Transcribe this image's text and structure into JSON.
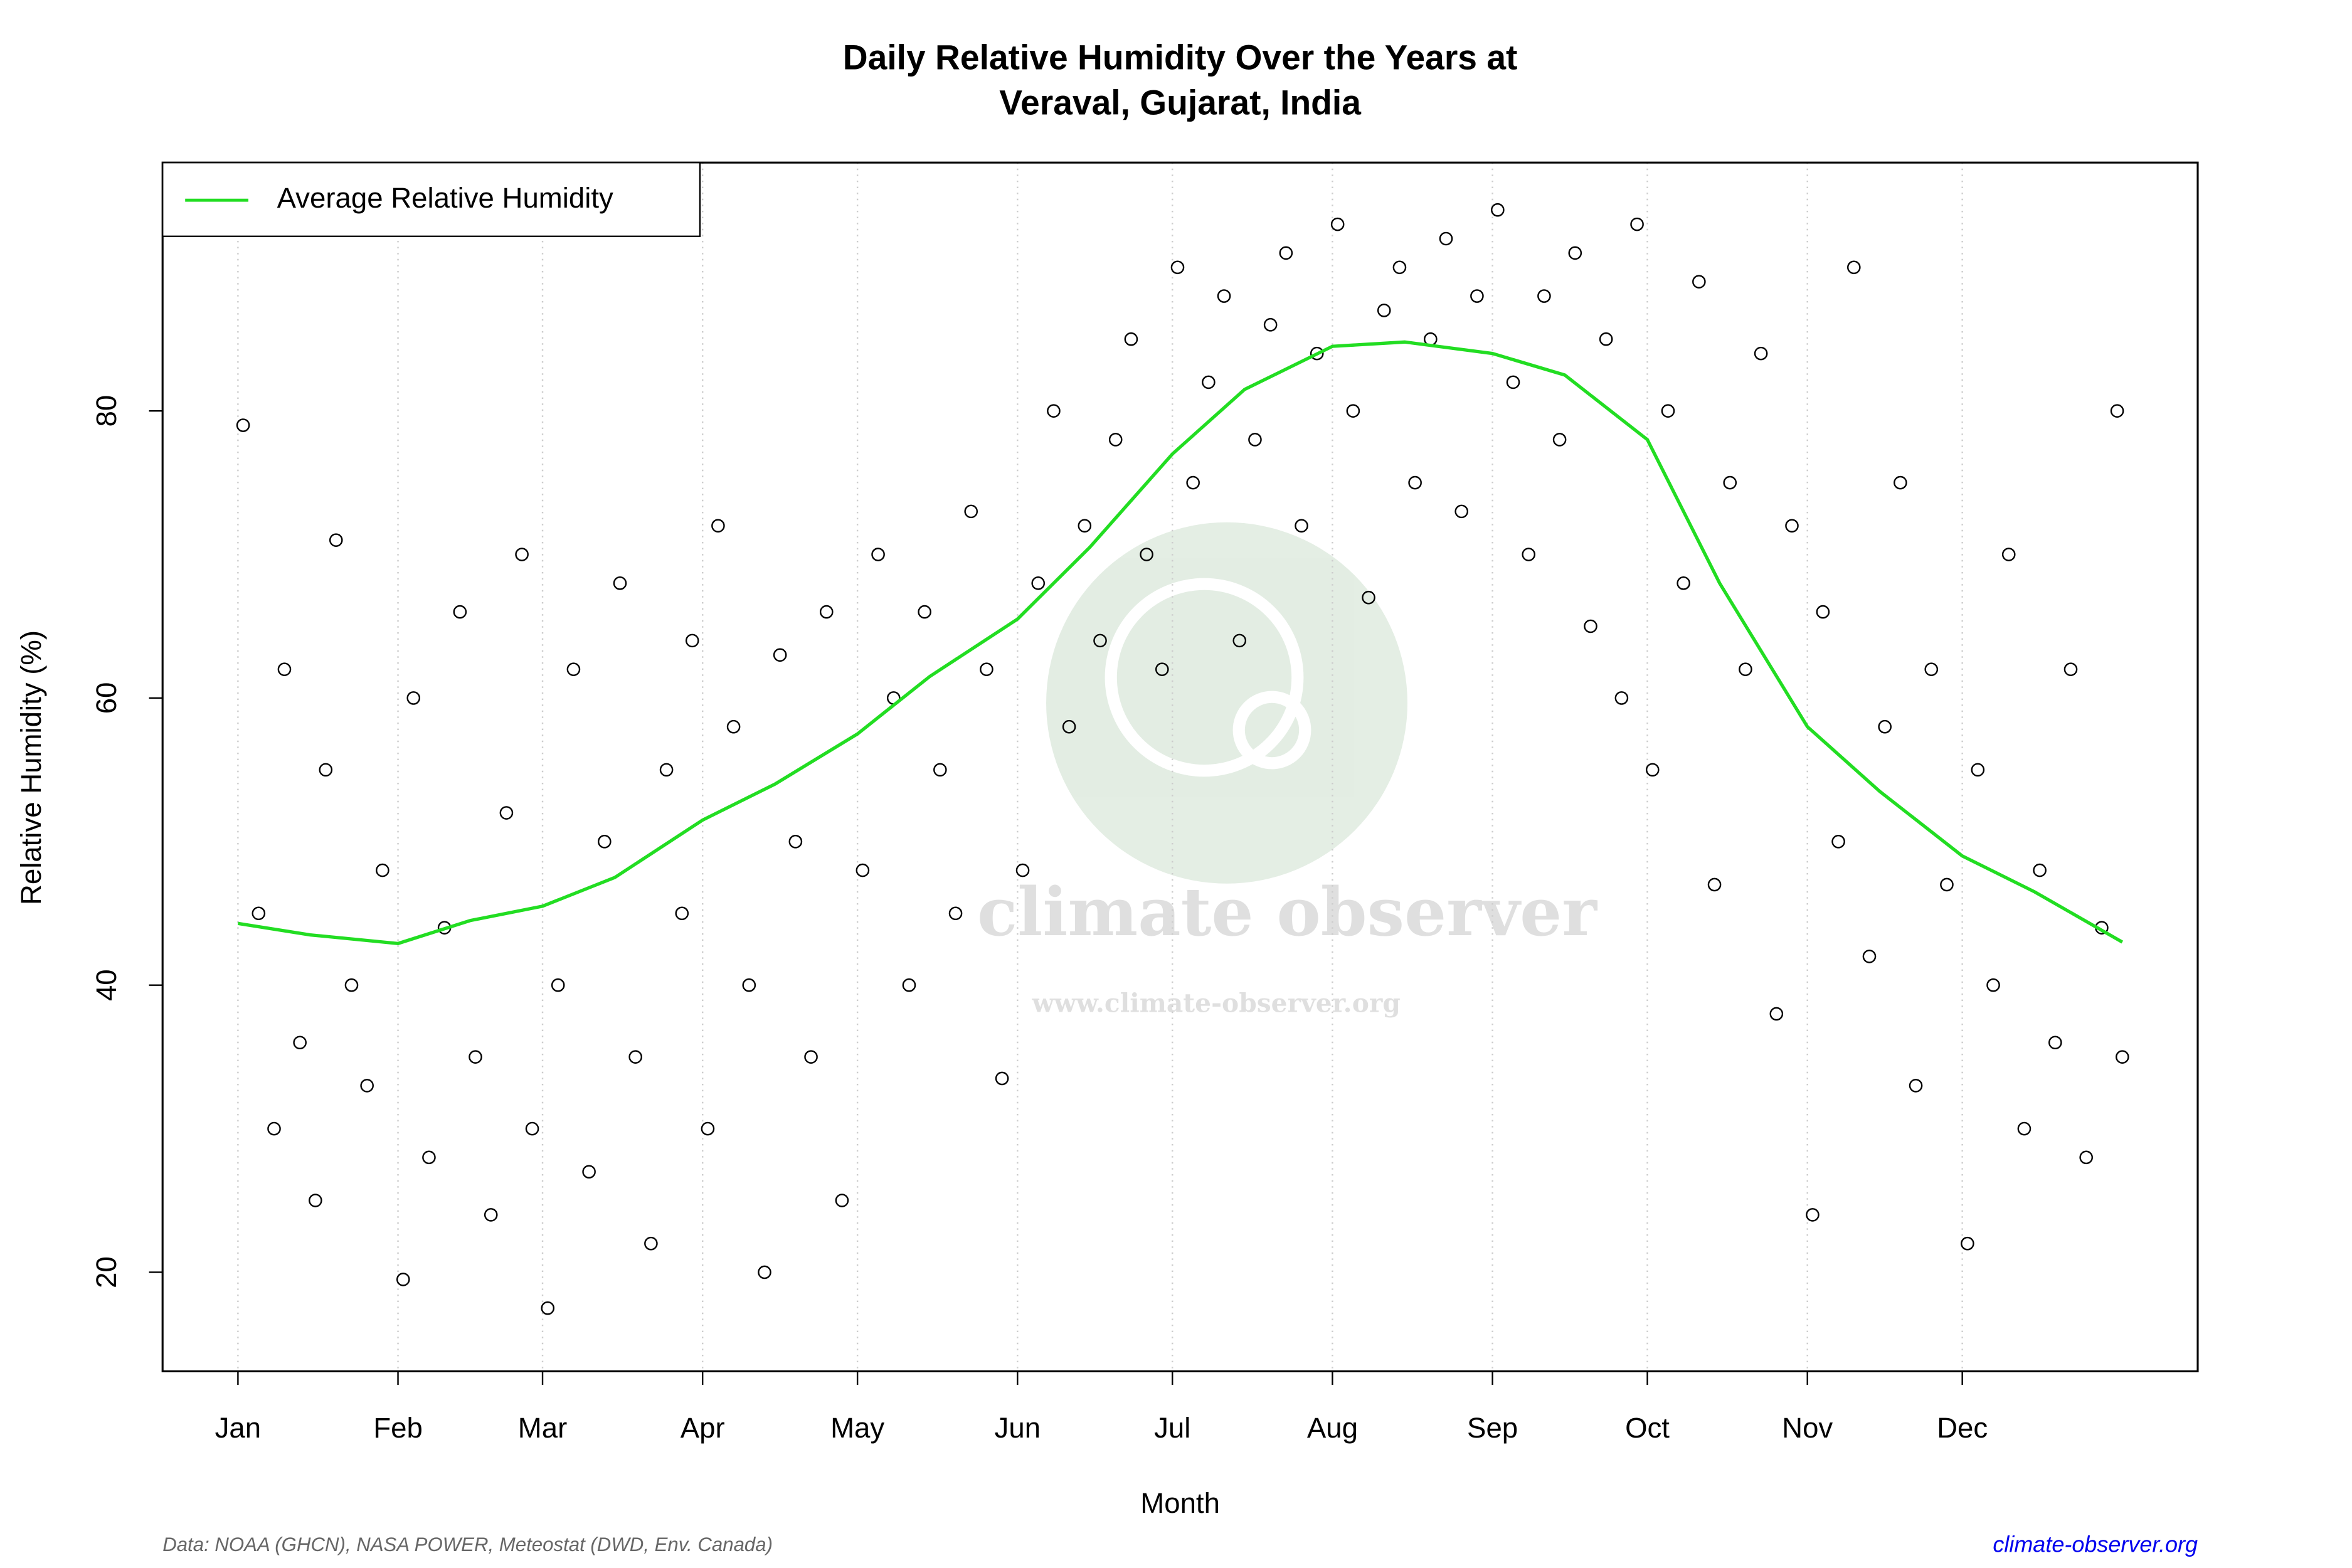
{
  "chart_data": {
    "type": "scatter",
    "title": [
      "Daily Relative Humidity Over the Years at",
      "Veraval, Gujarat, India"
    ],
    "x_label": "Month",
    "y_label": "Relative Humidity  (%)",
    "xlim": [
      -13.6,
      380.6
    ],
    "ylim": [
      13.1,
      97.3
    ],
    "xticks": [
      {
        "value": 1,
        "label": "Jan"
      },
      {
        "value": 32,
        "label": "Feb"
      },
      {
        "value": 60,
        "label": "Mar"
      },
      {
        "value": 91,
        "label": "Apr"
      },
      {
        "value": 121,
        "label": "May"
      },
      {
        "value": 152,
        "label": "Jun"
      },
      {
        "value": 182,
        "label": "Jul"
      },
      {
        "value": 213,
        "label": "Aug"
      },
      {
        "value": 244,
        "label": "Sep"
      },
      {
        "value": 274,
        "label": "Oct"
      },
      {
        "value": 305,
        "label": "Nov"
      },
      {
        "value": 335,
        "label": "Dec"
      }
    ],
    "yticks": [
      20,
      40,
      60,
      80
    ],
    "grid": true,
    "legend": "top-left",
    "points": {
      "color": "#000000",
      "x": [
        2,
        5,
        8,
        10,
        13,
        16,
        18,
        20,
        23,
        26,
        29,
        33,
        35,
        38,
        41,
        44,
        47,
        50,
        53,
        56,
        58,
        61,
        63,
        66,
        69,
        72,
        75,
        78,
        81,
        84,
        87,
        89,
        92,
        94,
        97,
        100,
        103,
        106,
        109,
        112,
        115,
        118,
        122,
        125,
        128,
        131,
        134,
        137,
        140,
        143,
        146,
        149,
        153,
        156,
        159,
        162,
        165,
        168,
        171,
        174,
        177,
        180,
        183,
        186,
        189,
        192,
        195,
        198,
        201,
        204,
        207,
        210,
        214,
        217,
        220,
        223,
        226,
        229,
        232,
        235,
        238,
        241,
        245,
        248,
        251,
        254,
        257,
        260,
        263,
        266,
        269,
        272,
        275,
        278,
        281,
        284,
        287,
        290,
        293,
        296,
        299,
        302,
        306,
        308,
        311,
        314,
        317,
        320,
        323,
        326,
        329,
        332,
        336,
        338,
        341,
        344,
        347,
        350,
        353,
        356,
        359,
        362,
        365,
        366
      ],
      "y": [
        79,
        45,
        30,
        62,
        36,
        25,
        55,
        71,
        40,
        33,
        48,
        19.5,
        60,
        28,
        44,
        66,
        35,
        24,
        52,
        70,
        30,
        17.5,
        40,
        62,
        27,
        50,
        68,
        35,
        22,
        55,
        45,
        64,
        30,
        72,
        58,
        40,
        20,
        63,
        50,
        35,
        66,
        25,
        48,
        70,
        60,
        40,
        66,
        55,
        45,
        73,
        62,
        33.5,
        48,
        68,
        80,
        58,
        72,
        64,
        78,
        85,
        70,
        62,
        90,
        75,
        82,
        88,
        64,
        78,
        86,
        91,
        72,
        84,
        93,
        80,
        67,
        87,
        90,
        75,
        85,
        92,
        73,
        88,
        94,
        82,
        70,
        88,
        78,
        91,
        65,
        85,
        60,
        93,
        55,
        80,
        68,
        89,
        47,
        75,
        62,
        84,
        38,
        72,
        24,
        66,
        50,
        90,
        42,
        58,
        75,
        33,
        62,
        47,
        22,
        55,
        40,
        70,
        30,
        48,
        36,
        62,
        28,
        44,
        80,
        35
      ]
    },
    "lines": [
      {
        "name": "Average Relative Humidity",
        "color": "#22dd22",
        "x": [
          1,
          15,
          32,
          46,
          60,
          74,
          91,
          105,
          121,
          135,
          152,
          166,
          182,
          196,
          213,
          227,
          244,
          258,
          274,
          288,
          305,
          319,
          335,
          349,
          366
        ],
        "values": [
          44.3,
          43.5,
          42.9,
          44.5,
          45.5,
          47.5,
          51.5,
          54,
          57.5,
          61.5,
          65.5,
          70.5,
          77,
          81.5,
          84.5,
          84.8,
          84,
          82.5,
          78,
          68,
          58,
          53.5,
          49,
          46.5,
          43
        ]
      }
    ],
    "watermark": [
      "climate observer",
      "www.climate-observer.org"
    ],
    "source": "Data: NOAA (GHCN), NASA POWER, Meteostat (DWD, Env. Canada)",
    "site": "climate-observer.org"
  }
}
